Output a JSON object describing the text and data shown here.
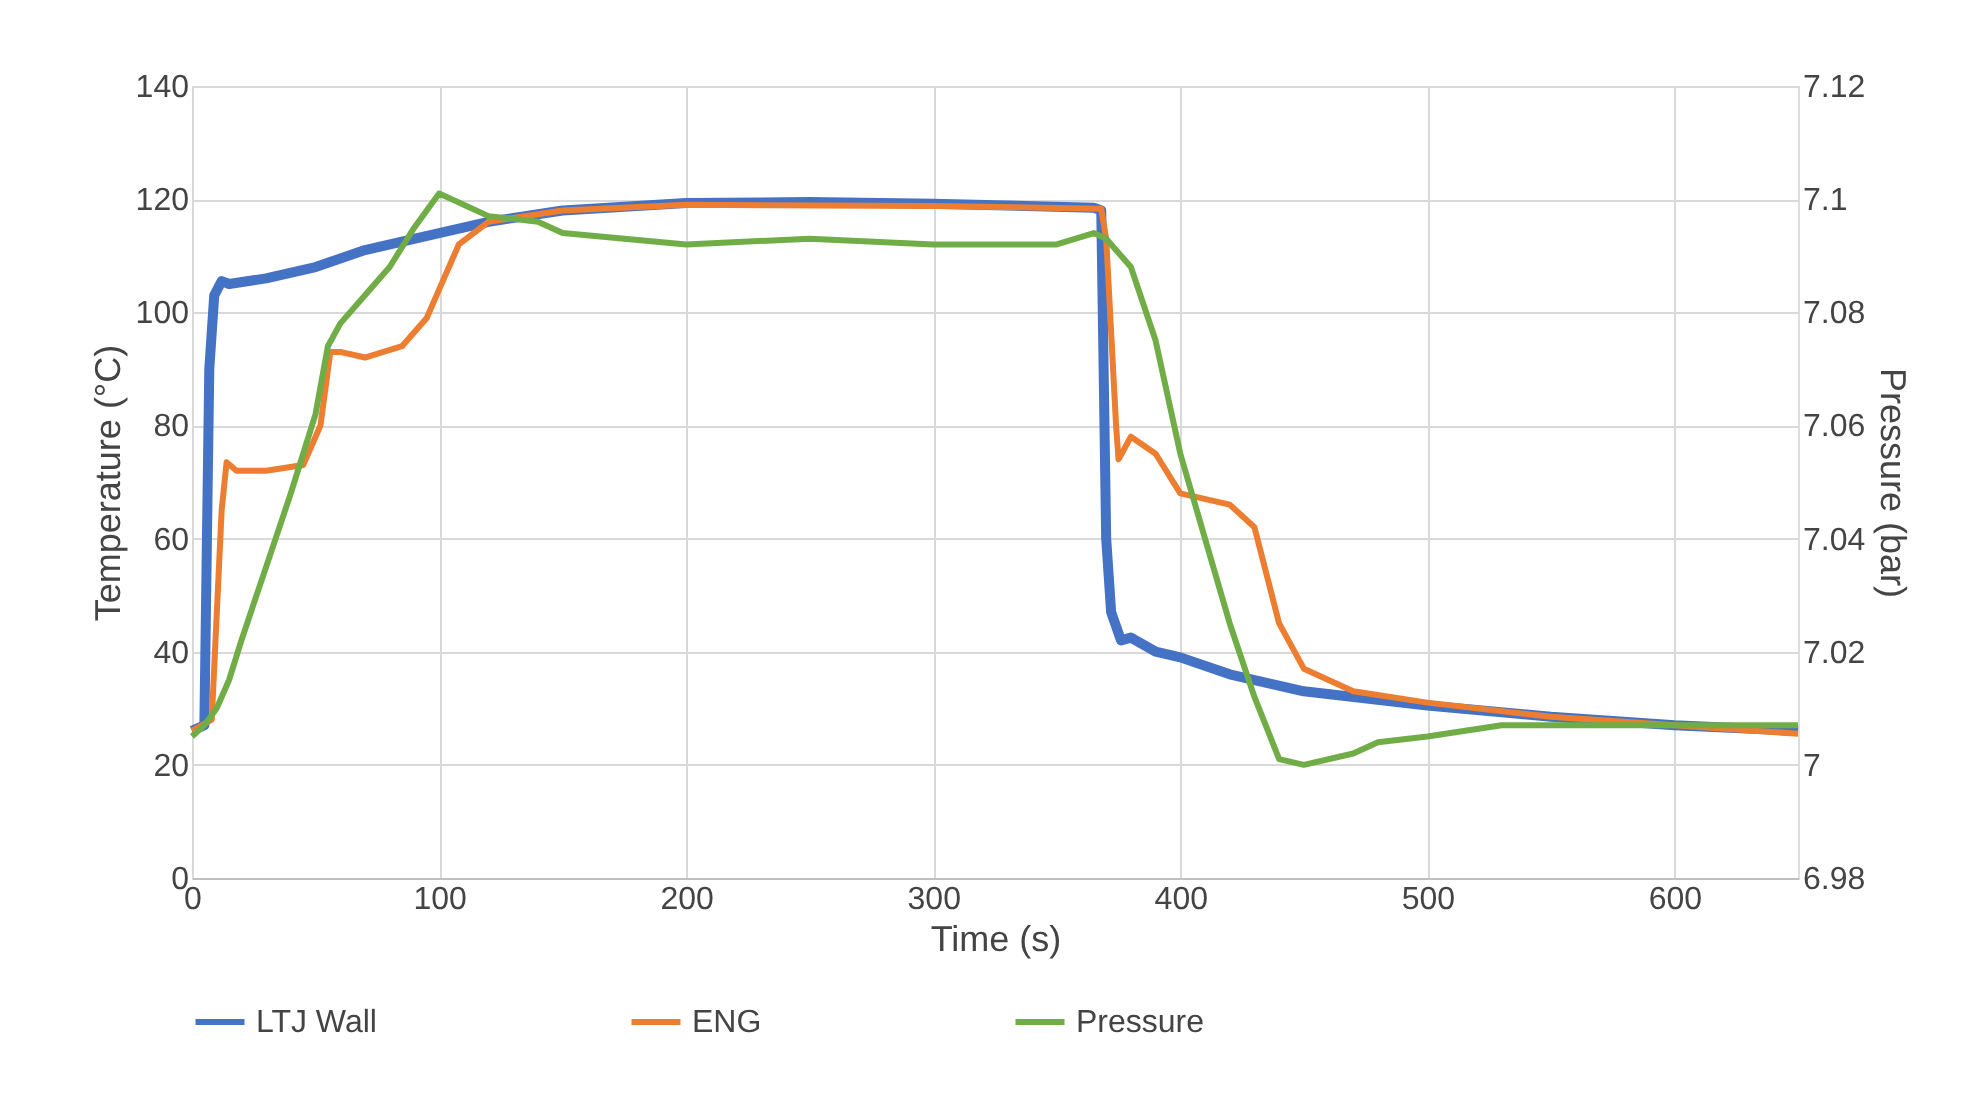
{
  "chart_data": {
    "type": "line",
    "xlabel": "Time (s)",
    "ylabel": "Temperature (°C)",
    "y2label": "Pressure (bar)",
    "xlim": [
      0,
      650
    ],
    "xticks": [
      0,
      100,
      200,
      300,
      400,
      500,
      600
    ],
    "ylim": [
      0,
      140
    ],
    "yticks": [
      0,
      20,
      40,
      60,
      80,
      100,
      120,
      140
    ],
    "y2lim": [
      6.98,
      7.12
    ],
    "y2ticks": [
      6.98,
      7,
      7.02,
      7.04,
      7.06,
      7.08,
      7.1,
      7.12
    ],
    "grid": true,
    "legend": "bottom",
    "marker": "none",
    "line_style": "solid",
    "series": [
      {
        "name": "LTJ Wall",
        "color": "#4472c4",
        "x": [
          0,
          5,
          7,
          9,
          12,
          15,
          30,
          50,
          70,
          100,
          120,
          150,
          200,
          250,
          300,
          365,
          368,
          370,
          372,
          376,
          380,
          390,
          400,
          420,
          450,
          500,
          550,
          600,
          650
        ],
        "values": [
          26,
          27,
          90,
          103,
          105.5,
          105,
          106,
          108,
          111,
          114,
          116,
          118,
          119.3,
          119.5,
          119.2,
          118.5,
          118,
          60,
          47,
          42,
          42.5,
          40,
          39,
          36,
          33,
          30.5,
          28.5,
          27,
          26
        ]
      },
      {
        "name": "ENG",
        "color": "#ed7d31",
        "x": [
          0,
          8,
          12,
          14,
          18,
          30,
          45,
          52,
          56,
          60,
          70,
          85,
          95,
          100,
          108,
          120,
          150,
          200,
          300,
          368,
          370,
          374,
          375,
          380,
          390,
          400,
          420,
          430,
          440,
          450,
          470,
          500,
          550,
          600,
          650
        ],
        "values": [
          26,
          28,
          65,
          73.5,
          72,
          72,
          73,
          80,
          93,
          93,
          92,
          94,
          99,
          104,
          112,
          116,
          118,
          119,
          118.8,
          118.3,
          113,
          80,
          74,
          78,
          75,
          68,
          66,
          62,
          45,
          37,
          33,
          31,
          28.5,
          27,
          25.5
        ]
      },
      {
        "name": "Pressure",
        "color": "#70ad47",
        "axis": "y2",
        "x": [
          0,
          5,
          10,
          15,
          20,
          30,
          40,
          50,
          55,
          60,
          70,
          80,
          90,
          100,
          105,
          110,
          120,
          140,
          150,
          200,
          250,
          300,
          350,
          365,
          370,
          380,
          390,
          400,
          410,
          420,
          430,
          440,
          450,
          470,
          480,
          500,
          530,
          600,
          650
        ],
        "values": [
          7.005,
          7.007,
          7.01,
          7.015,
          7.022,
          7.035,
          7.048,
          7.062,
          7.074,
          7.078,
          7.083,
          7.088,
          7.095,
          7.101,
          7.1,
          7.099,
          7.097,
          7.096,
          7.094,
          7.092,
          7.093,
          7.092,
          7.092,
          7.094,
          7.093,
          7.088,
          7.075,
          7.055,
          7.04,
          7.025,
          7.012,
          7.001,
          7,
          7.002,
          7.004,
          7.005,
          7.007,
          7.007,
          7.007
        ]
      }
    ]
  }
}
